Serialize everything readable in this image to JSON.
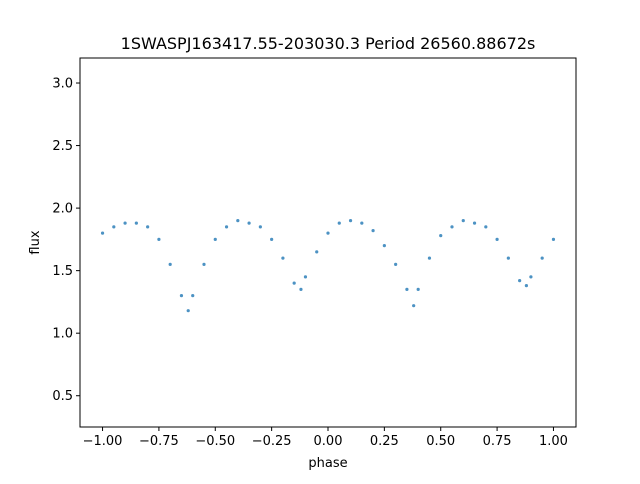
{
  "chart_data": {
    "type": "scatter",
    "title": "1SWASPJ163417.55-203030.3 Period 26560.88672s",
    "xlabel": "phase",
    "ylabel": "flux",
    "xlim": [
      -1.1,
      1.1
    ],
    "ylim": [
      0.25,
      3.2
    ],
    "x_ticks": [
      -1.0,
      -0.75,
      -0.5,
      -0.25,
      0.0,
      0.25,
      0.5,
      0.75,
      1.0
    ],
    "x_tick_labels": [
      "−1.00",
      "−0.75",
      "−0.50",
      "−0.25",
      "0.00",
      "0.25",
      "0.50",
      "0.75",
      "1.00"
    ],
    "y_ticks": [
      0.5,
      1.0,
      1.5,
      2.0,
      2.5,
      3.0
    ],
    "y_tick_labels": [
      "0.5",
      "1.0",
      "1.5",
      "2.0",
      "2.5",
      "3.0"
    ],
    "grid": false,
    "legend": "none",
    "marker_color": "#1f77b4",
    "series": [
      {
        "x": [
          -1.0,
          -0.95,
          -0.9,
          -0.85,
          -0.8,
          -0.75,
          -0.7,
          -0.65,
          -0.62,
          -0.6,
          -0.55,
          -0.5,
          -0.45,
          -0.4,
          -0.35,
          -0.3,
          -0.25,
          -0.2,
          -0.15,
          -0.12,
          -0.1,
          -0.05,
          0.0,
          0.05,
          0.1,
          0.15,
          0.2,
          0.25,
          0.3,
          0.35,
          0.38,
          0.4,
          0.45,
          0.5,
          0.55,
          0.6,
          0.65,
          0.7,
          0.75,
          0.8,
          0.85,
          0.88,
          0.9,
          0.95,
          1.0
        ],
        "y": [
          1.8,
          1.85,
          1.88,
          1.88,
          1.85,
          1.75,
          1.55,
          1.3,
          1.18,
          1.3,
          1.55,
          1.75,
          1.85,
          1.9,
          1.88,
          1.85,
          1.75,
          1.6,
          1.4,
          1.35,
          1.45,
          1.65,
          1.8,
          1.88,
          1.9,
          1.88,
          1.82,
          1.7,
          1.55,
          1.35,
          1.22,
          1.35,
          1.6,
          1.78,
          1.85,
          1.9,
          1.88,
          1.85,
          1.75,
          1.6,
          1.42,
          1.38,
          1.45,
          1.6,
          1.75
        ]
      }
    ]
  }
}
